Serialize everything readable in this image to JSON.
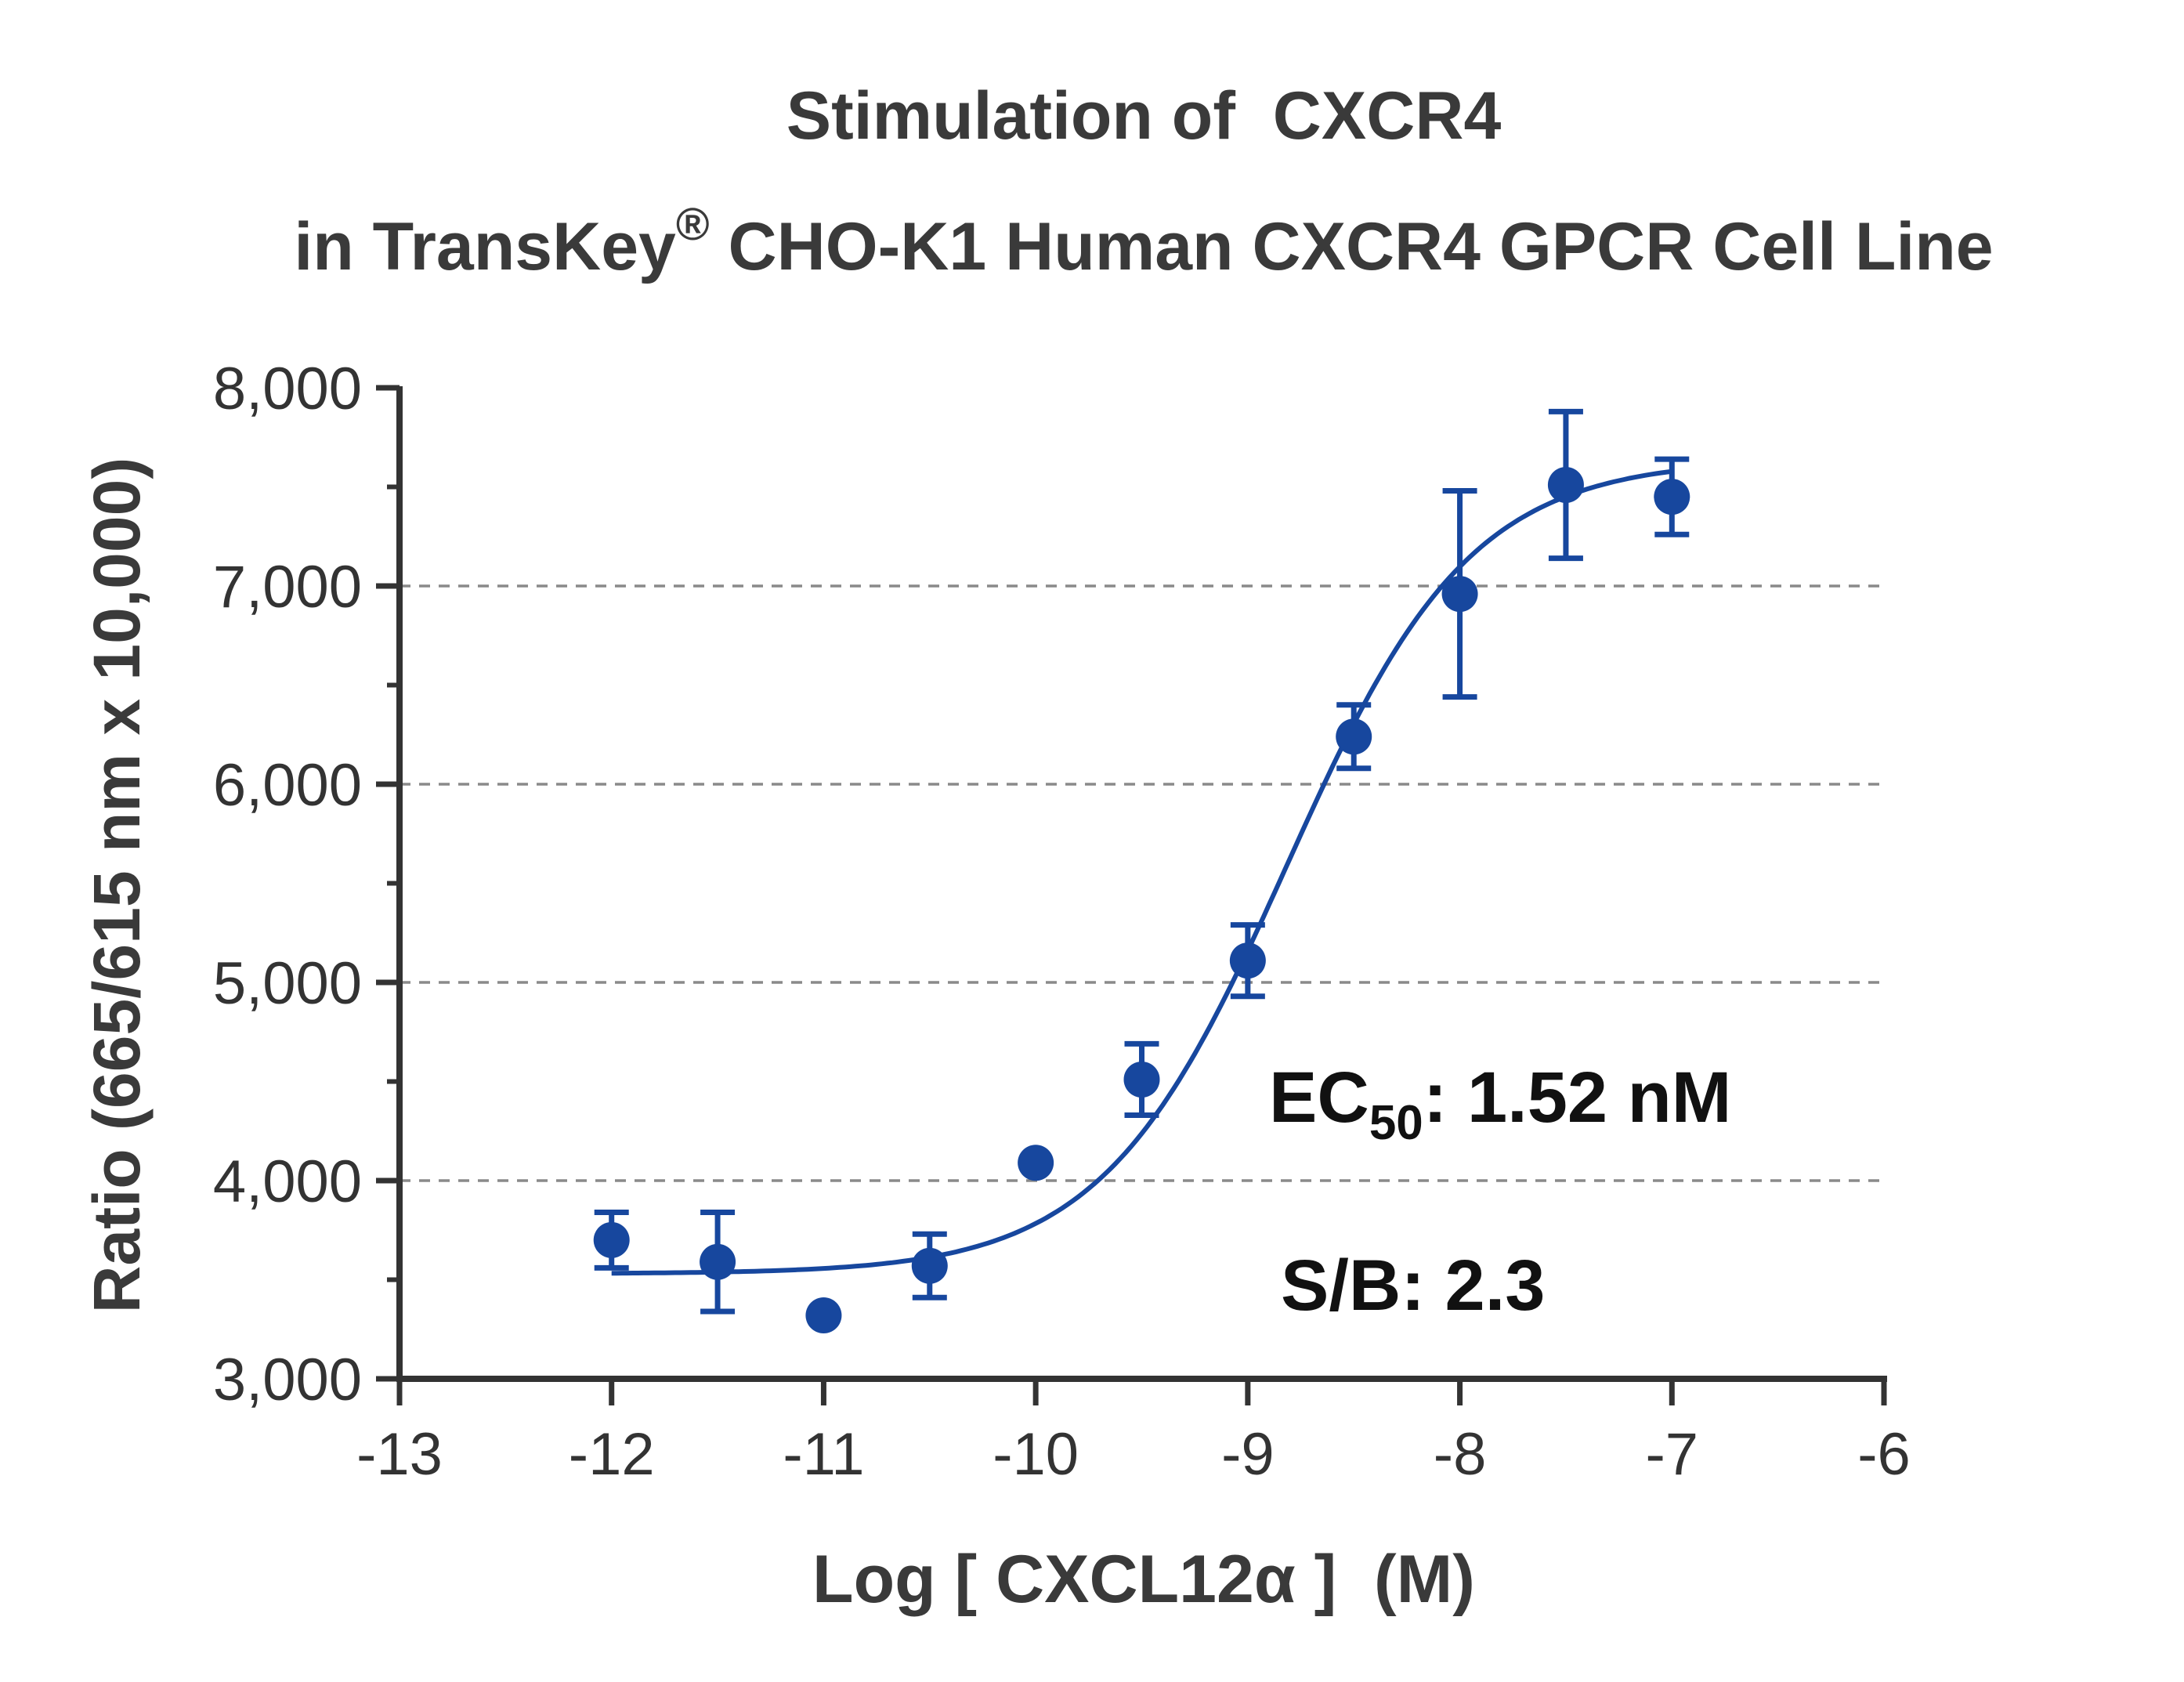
{
  "chart_data": {
    "type": "scatter",
    "title_line1": "Stimulation of  CXCR4",
    "title_line2_prefix": "in TransKey",
    "title_line2_sup": "®",
    "title_line2_suffix": " CHO-K1 Human CXCR4 GPCR Cell Line",
    "xlabel": "Log [ CXCL12α ]  (M)",
    "ylabel": "Ratio (665/615 nm x 10,000)",
    "xlim": [
      -13,
      -6
    ],
    "ylim": [
      3000,
      8000
    ],
    "x_ticks": [
      -13,
      -12,
      -11,
      -10,
      -9,
      -8,
      -7,
      -6
    ],
    "x_tick_labels": [
      "-13",
      "-12",
      "-11",
      "-10",
      "-9",
      "-8",
      "-7",
      "-6"
    ],
    "y_ticks": [
      3000,
      4000,
      5000,
      6000,
      7000,
      8000
    ],
    "y_tick_labels": [
      "3,000",
      "4,000",
      "5,000",
      "6,000",
      "7,000",
      "8,000"
    ],
    "gridlines_y": [
      4000,
      5000,
      6000,
      7000
    ],
    "grid": "horizontal dashed",
    "series": [
      {
        "color": "#17479e",
        "points": [
          {
            "x": -12.0,
            "y": 3700,
            "err": 140
          },
          {
            "x": -11.5,
            "y": 3590,
            "err": 250
          },
          {
            "x": -11.0,
            "y": 3320,
            "err": 0
          },
          {
            "x": -10.5,
            "y": 3570,
            "err": 160
          },
          {
            "x": -10.0,
            "y": 4090,
            "err": 0
          },
          {
            "x": -9.5,
            "y": 4510,
            "err": 180
          },
          {
            "x": -9.0,
            "y": 5110,
            "err": 180
          },
          {
            "x": -8.5,
            "y": 6240,
            "err": 160
          },
          {
            "x": -8.0,
            "y": 6960,
            "err": 520
          },
          {
            "x": -7.5,
            "y": 7510,
            "err": 370
          },
          {
            "x": -7.0,
            "y": 7450,
            "err": 190
          }
        ]
      }
    ],
    "fit_curve": {
      "model": "four-parameter logistic",
      "bottom": 3530,
      "top": 7640,
      "log_ec50": -8.818,
      "hill_slope": 1.0,
      "x_range": [
        -12,
        -7
      ]
    },
    "annotations": {
      "ec50_prefix": "EC",
      "ec50_sub": "50",
      "ec50_value": ": 1.52 nM",
      "sb": "S/B: 2.3"
    }
  }
}
